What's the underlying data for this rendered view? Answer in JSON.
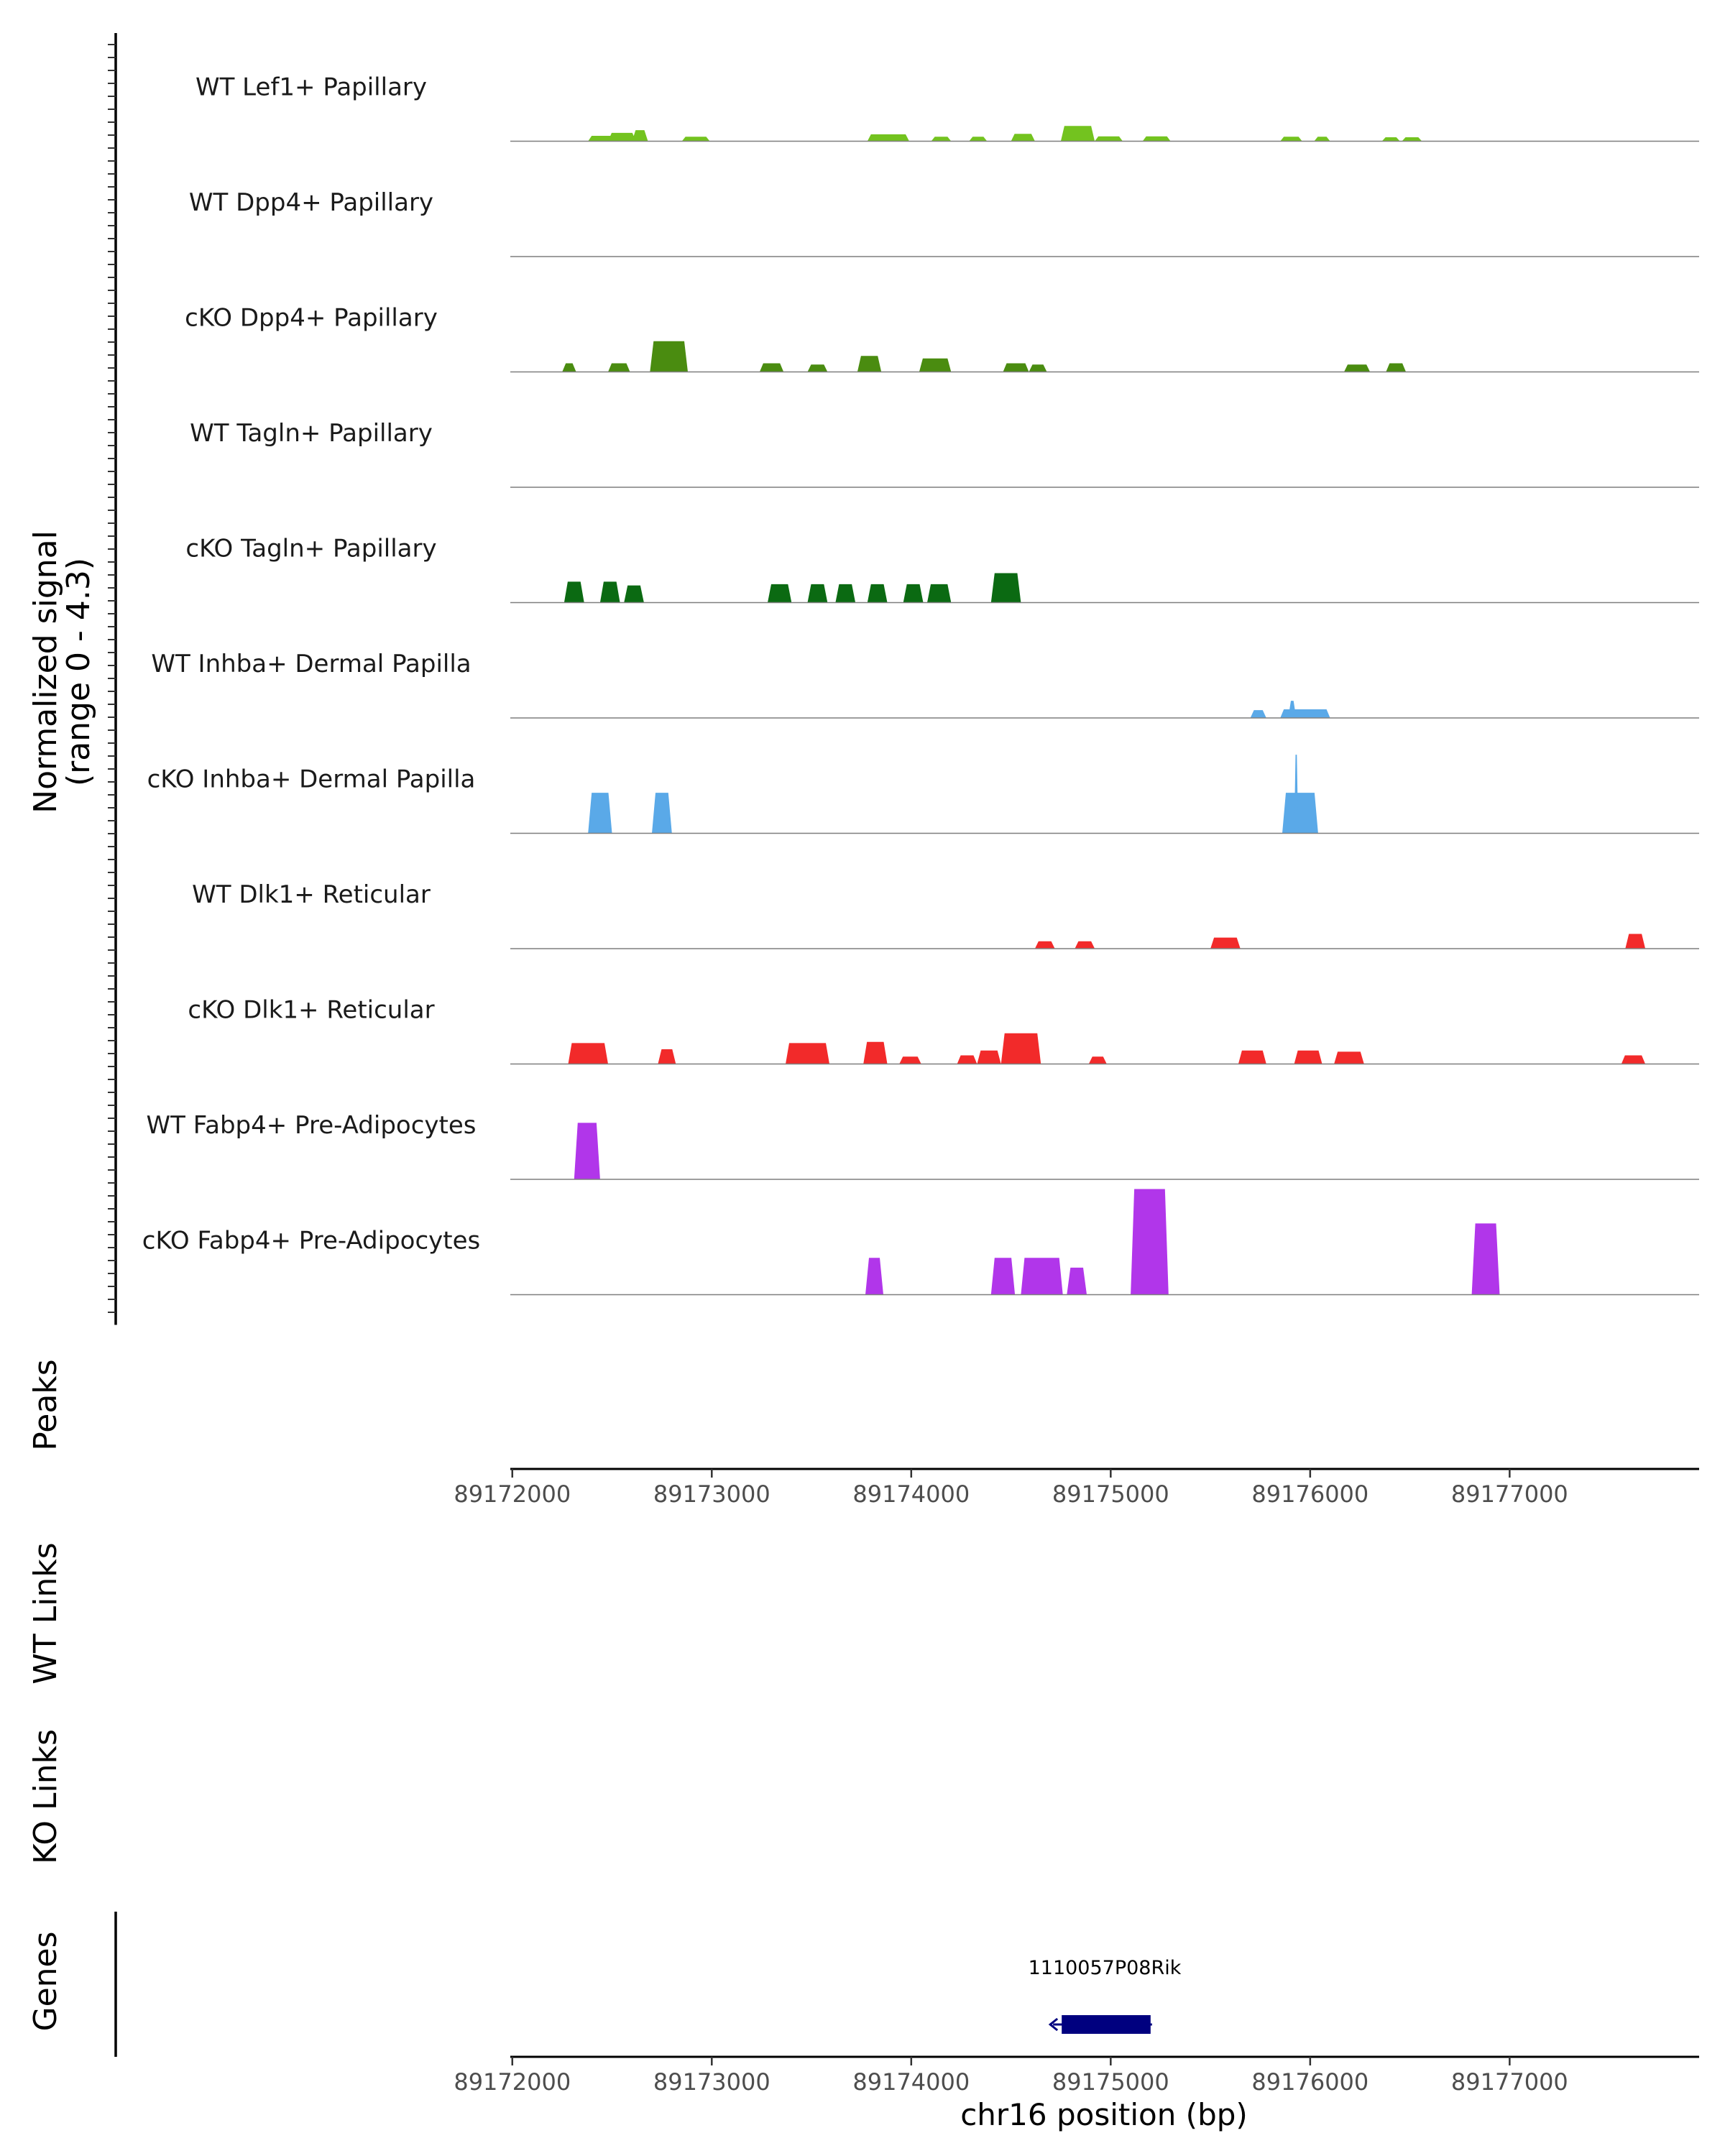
{
  "chart_data": {
    "type": "area",
    "chromosome": "chr16",
    "xlim": [
      89171990,
      89177950
    ],
    "xticks": [
      89172000,
      89173000,
      89174000,
      89175000,
      89176000,
      89177000
    ],
    "xtick_labels": [
      "89172000",
      "89173000",
      "89174000",
      "89175000",
      "89176000",
      "89177000"
    ],
    "xlabel": "chr16 position (bp)",
    "ylabel": "Normalized signal",
    "ylabel_range": "(range 0 - 4.3)",
    "ylim": [
      0,
      4.3
    ],
    "side_labels": {
      "peaks": "Peaks",
      "wt_links": "WT Links",
      "ko_links": "KO Links",
      "genes": "Genes"
    },
    "tracks": [
      {
        "name": "WT Lef1+ Papillary",
        "color": "#73c31f",
        "bins": [
          [
            89172380,
            89172680,
            0.22
          ],
          [
            89172480,
            89172620,
            0.34
          ],
          [
            89172600,
            89172680,
            0.45
          ],
          [
            89172850,
            89172990,
            0.18
          ],
          [
            89173780,
            89173990,
            0.28
          ],
          [
            89174100,
            89174200,
            0.18
          ],
          [
            89174290,
            89174380,
            0.18
          ],
          [
            89174500,
            89174620,
            0.3
          ],
          [
            89174750,
            89174920,
            0.62
          ],
          [
            89174920,
            89175060,
            0.2
          ],
          [
            89175160,
            89175300,
            0.2
          ],
          [
            89175850,
            89175960,
            0.18
          ],
          [
            89176020,
            89176100,
            0.18
          ],
          [
            89176360,
            89176450,
            0.16
          ],
          [
            89176460,
            89176560,
            0.16
          ]
        ]
      },
      {
        "name": "WT Dpp4+ Papillary",
        "color": "#4a8c10",
        "bins": []
      },
      {
        "name": "cKO Dpp4+ Papillary",
        "color": "#4a8c10",
        "bins": [
          [
            89172250,
            89172320,
            0.35
          ],
          [
            89172480,
            89172590,
            0.35
          ],
          [
            89172690,
            89172880,
            1.25
          ],
          [
            89173240,
            89173360,
            0.35
          ],
          [
            89173480,
            89173580,
            0.3
          ],
          [
            89173730,
            89173850,
            0.65
          ],
          [
            89174040,
            89174200,
            0.55
          ],
          [
            89174460,
            89174590,
            0.35
          ],
          [
            89174590,
            89174680,
            0.3
          ],
          [
            89176170,
            89176300,
            0.3
          ],
          [
            89176380,
            89176480,
            0.35
          ]
        ]
      },
      {
        "name": "WT Tagln+ Papillary",
        "color": "#0b6a12",
        "bins": []
      },
      {
        "name": "cKO Tagln+ Papillary",
        "color": "#0b6a12",
        "bins": [
          [
            89172260,
            89172360,
            0.85
          ],
          [
            89172440,
            89172540,
            0.85
          ],
          [
            89172560,
            89172660,
            0.7
          ],
          [
            89173280,
            89173400,
            0.75
          ],
          [
            89173480,
            89173580,
            0.75
          ],
          [
            89173620,
            89173720,
            0.75
          ],
          [
            89173780,
            89173880,
            0.75
          ],
          [
            89173960,
            89174060,
            0.75
          ],
          [
            89174080,
            89174200,
            0.75
          ],
          [
            89174400,
            89174550,
            1.2
          ]
        ]
      },
      {
        "name": "WT Inhba+ Dermal Papilla",
        "color": "#5aa9e8",
        "bins": [
          [
            89175700,
            89175780,
            0.32
          ],
          [
            89175850,
            89176100,
            0.35
          ],
          [
            89175890,
            89175930,
            0.7
          ]
        ]
      },
      {
        "name": "cKO Inhba+ Dermal Papilla",
        "color": "#5aa9e8",
        "bins": [
          [
            89172380,
            89172500,
            1.65
          ],
          [
            89172700,
            89172800,
            1.65
          ],
          [
            89175860,
            89176040,
            1.65
          ],
          [
            89175920,
            89175940,
            3.2
          ]
        ]
      },
      {
        "name": "WT Dlk1+ Reticular",
        "color": "#f22a2a",
        "bins": [
          [
            89174620,
            89174720,
            0.3
          ],
          [
            89174820,
            89174920,
            0.3
          ],
          [
            89175500,
            89175650,
            0.45
          ],
          [
            89177580,
            89177680,
            0.6
          ]
        ]
      },
      {
        "name": "cKO Dlk1+ Reticular",
        "color": "#f22a2a",
        "bins": [
          [
            89172280,
            89172480,
            0.85
          ],
          [
            89172730,
            89172820,
            0.6
          ],
          [
            89173370,
            89173590,
            0.85
          ],
          [
            89173760,
            89173880,
            0.9
          ],
          [
            89173940,
            89174050,
            0.3
          ],
          [
            89174230,
            89174330,
            0.35
          ],
          [
            89174330,
            89174450,
            0.55
          ],
          [
            89174450,
            89174650,
            1.25
          ],
          [
            89174890,
            89174980,
            0.3
          ],
          [
            89175640,
            89175780,
            0.55
          ],
          [
            89175920,
            89176060,
            0.55
          ],
          [
            89176120,
            89176270,
            0.5
          ],
          [
            89177560,
            89177680,
            0.35
          ]
        ]
      },
      {
        "name": "WT Fabp4+ Pre-Adipocytes",
        "color": "#b136ea",
        "bins": [
          [
            89172310,
            89172440,
            2.3
          ]
        ]
      },
      {
        "name": "cKO Fabp4+ Pre-Adipocytes",
        "color": "#b136ea",
        "bins": [
          [
            89173770,
            89173860,
            1.5
          ],
          [
            89174400,
            89174520,
            1.5
          ],
          [
            89174550,
            89174760,
            1.5
          ],
          [
            89174780,
            89174880,
            1.1
          ],
          [
            89175100,
            89175290,
            4.3
          ],
          [
            89176810,
            89176950,
            2.9
          ]
        ]
      }
    ],
    "genes": [
      {
        "name": "1110057P08Rik",
        "start": 89174740,
        "end": 89175200,
        "strand": "-",
        "color": "#00007f"
      }
    ]
  }
}
